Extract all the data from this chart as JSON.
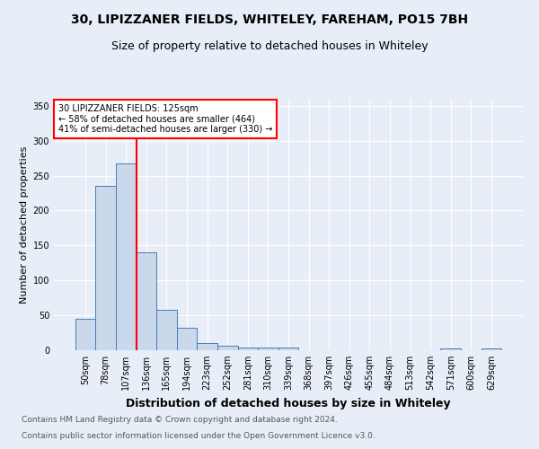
{
  "title": "30, LIPIZZANER FIELDS, WHITELEY, FAREHAM, PO15 7BH",
  "subtitle": "Size of property relative to detached houses in Whiteley",
  "xlabel": "Distribution of detached houses by size in Whiteley",
  "ylabel": "Number of detached properties",
  "footnote1": "Contains HM Land Registry data © Crown copyright and database right 2024.",
  "footnote2": "Contains public sector information licensed under the Open Government Licence v3.0.",
  "bar_labels": [
    "50sqm",
    "78sqm",
    "107sqm",
    "136sqm",
    "165sqm",
    "194sqm",
    "223sqm",
    "252sqm",
    "281sqm",
    "310sqm",
    "339sqm",
    "368sqm",
    "397sqm",
    "426sqm",
    "455sqm",
    "484sqm",
    "513sqm",
    "542sqm",
    "571sqm",
    "600sqm",
    "629sqm"
  ],
  "bar_values": [
    45,
    235,
    268,
    140,
    58,
    32,
    10,
    7,
    4,
    4,
    4,
    0,
    0,
    0,
    0,
    0,
    0,
    0,
    3,
    0,
    3
  ],
  "bar_color": "#c9d9eb",
  "bar_edge_color": "#4a7ab5",
  "annotation_line1": "30 LIPIZZANER FIELDS: 125sqm",
  "annotation_line2": "← 58% of detached houses are smaller (464)",
  "annotation_line3": "41% of semi-detached houses are larger (330) →",
  "vline_x": 2.5,
  "vline_color": "red",
  "ylim": [
    0,
    360
  ],
  "yticks": [
    0,
    50,
    100,
    150,
    200,
    250,
    300,
    350
  ],
  "bg_color": "#e8eef7",
  "plot_bg_color": "#e8eef7",
  "title_fontsize": 10,
  "subtitle_fontsize": 9,
  "xlabel_fontsize": 9,
  "ylabel_fontsize": 8,
  "tick_fontsize": 7,
  "footnote_fontsize": 6.5
}
